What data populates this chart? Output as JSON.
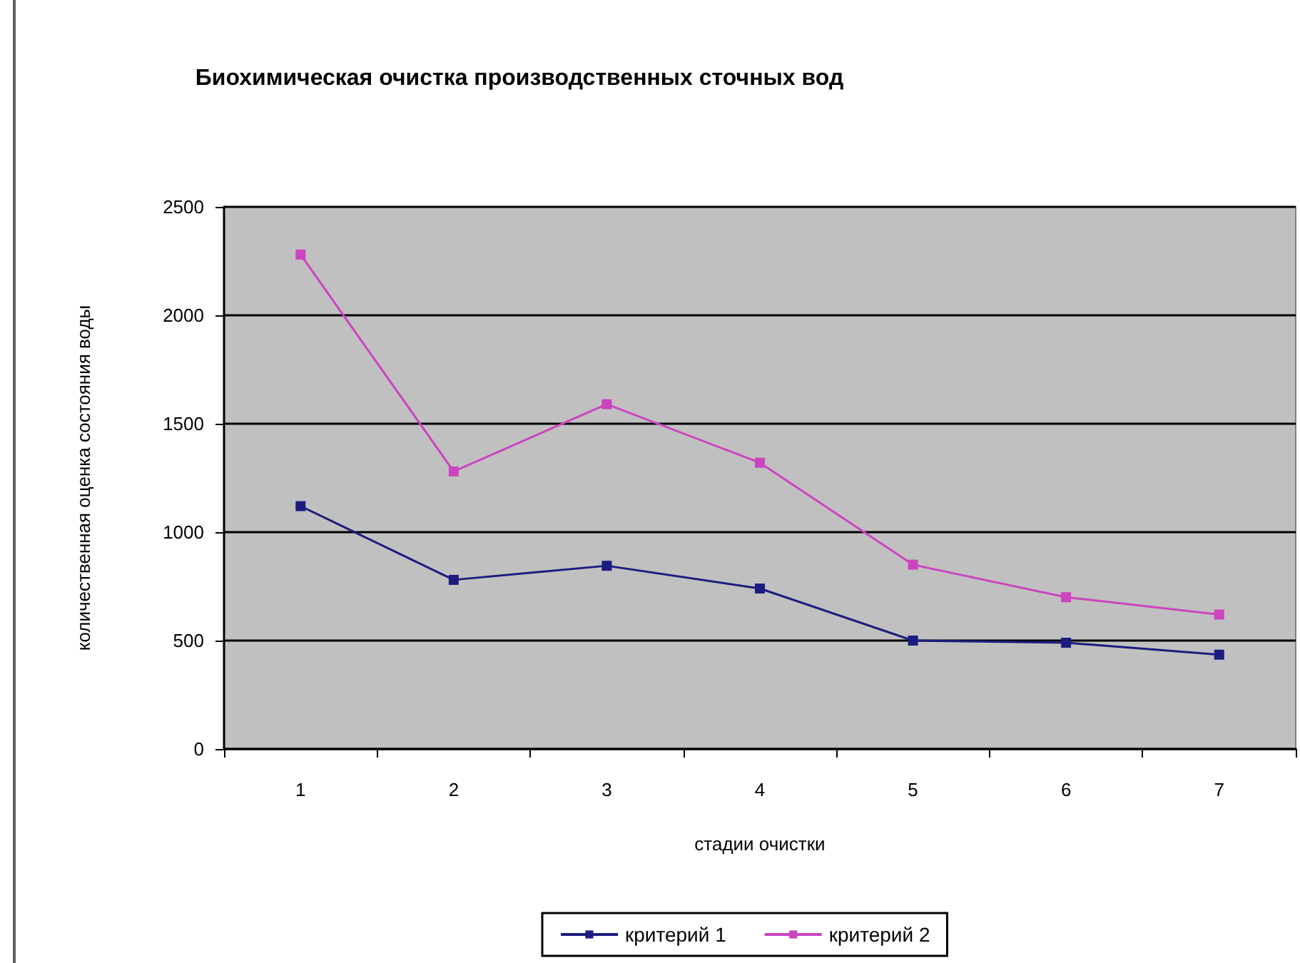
{
  "chart_data": {
    "type": "line",
    "title": "Биохимическая очистка производственных сточных вод",
    "xlabel": "стадии очистки",
    "ylabel": "количественная оценка состояния воды",
    "categories": [
      "1",
      "2",
      "3",
      "4",
      "5",
      "6",
      "7"
    ],
    "series": [
      {
        "name": "критерий 1",
        "color": "#1c1c80",
        "values": [
          1120,
          780,
          845,
          740,
          500,
          490,
          435
        ]
      },
      {
        "name": "критерий 2",
        "color": "#cc44c0",
        "values": [
          2280,
          1280,
          1590,
          1320,
          850,
          700,
          620
        ]
      }
    ],
    "ylim": [
      0,
      2500
    ],
    "yticks": [
      0,
      500,
      1000,
      1500,
      2000,
      2500
    ],
    "grid": "y",
    "legend": "bottom",
    "marker": "square",
    "line_style": "solid"
  }
}
